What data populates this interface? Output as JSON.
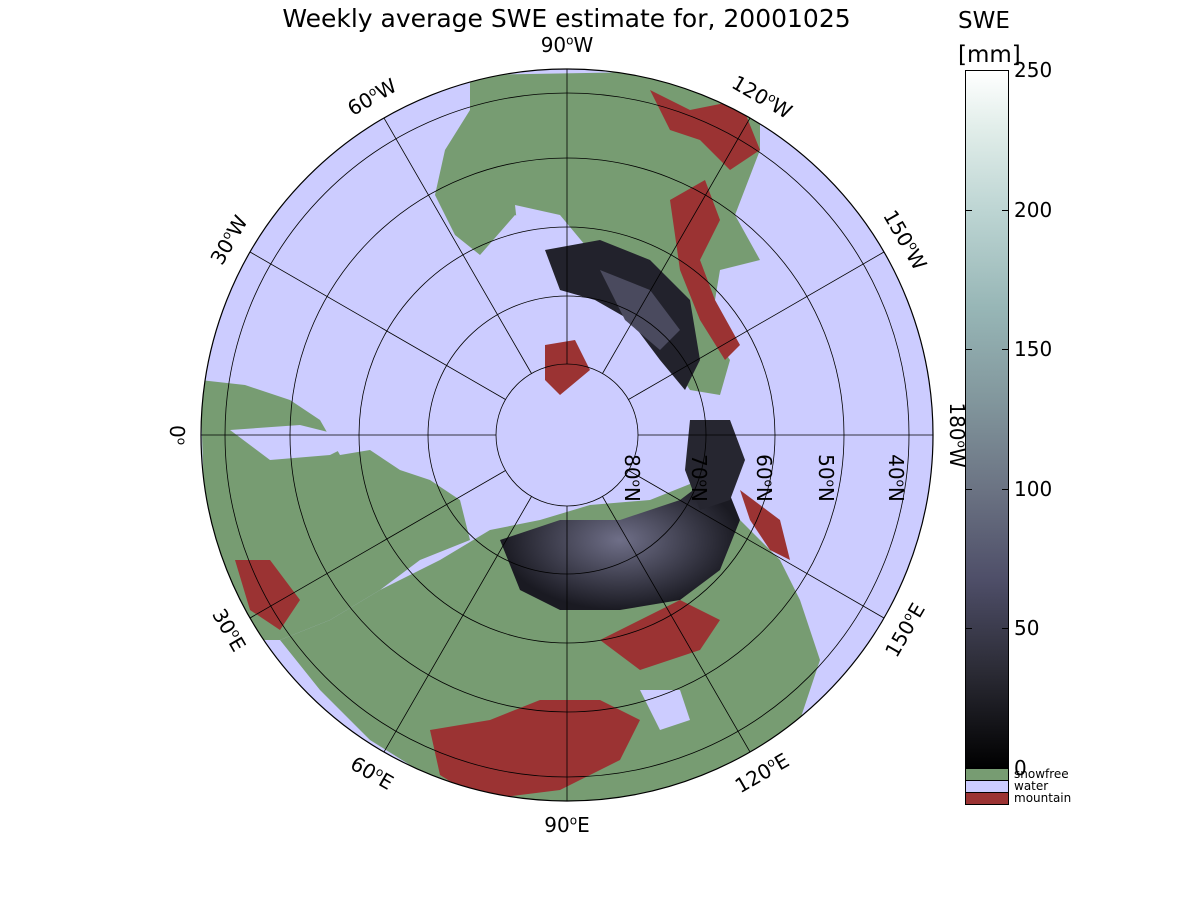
{
  "title": "Weekly average SWE estimate for, 20001025",
  "colorbar": {
    "title_line1": "SWE",
    "title_line2": "[mm]",
    "ticks": [
      0,
      50,
      100,
      150,
      200,
      250
    ],
    "max": 250,
    "categories": [
      {
        "label": "snowfree",
        "color": "#779c72"
      },
      {
        "label": "water",
        "color": "#ccccff"
      },
      {
        "label": "mountain",
        "color": "#9b3333"
      }
    ]
  },
  "map": {
    "projection": "north polar stereographic",
    "ocean_color": "#ccccff",
    "land_color": "#779c72",
    "mountain_color": "#9b3333",
    "lon_labels": [
      "90",
      "120",
      "150",
      "180",
      "150",
      "120",
      "90",
      "60",
      "30",
      "0",
      "30",
      "60"
    ],
    "lon_hemis": [
      "W",
      "W",
      "W",
      "W",
      "E",
      "E",
      "E",
      "E",
      "E",
      "",
      "W",
      "W"
    ],
    "lat_labels": [
      "80",
      "70",
      "60",
      "50",
      "40"
    ],
    "lat_hemi": "N"
  }
}
